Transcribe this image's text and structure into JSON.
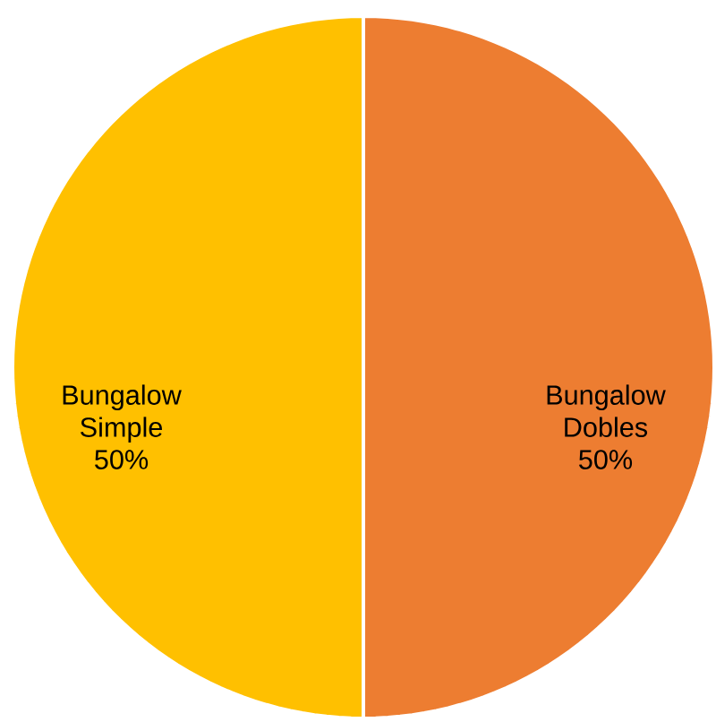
{
  "chart_data": {
    "type": "pie",
    "categories": [
      "Bungalow Dobles",
      "Bungalow Simple"
    ],
    "values": [
      50,
      50
    ],
    "colors": [
      "#ed7d31",
      "#ffc000"
    ],
    "value_labels": [
      "50%",
      "50%"
    ]
  }
}
